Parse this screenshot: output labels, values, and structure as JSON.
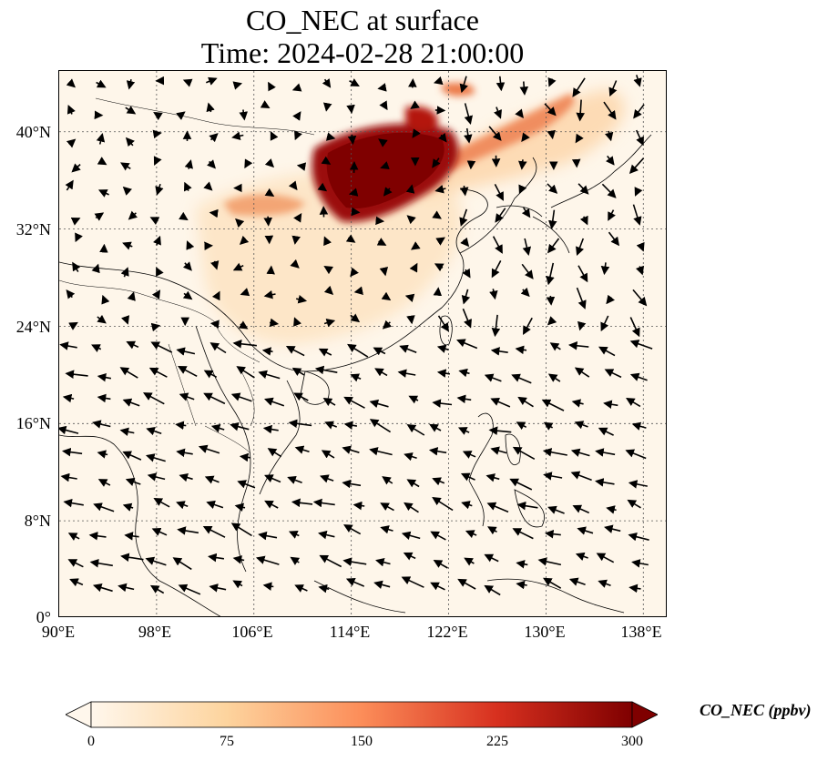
{
  "figure": {
    "title_line1": "CO_NEC at surface",
    "title_line2": "Time: 2024-02-28 21:00:00"
  },
  "map": {
    "lon_range": [
      90,
      140
    ],
    "lat_range": [
      0,
      45
    ],
    "lat_ticks": [
      "40°N",
      "32°N",
      "24°N",
      "16°N",
      "8°N",
      "0°"
    ],
    "lon_ticks": [
      "90°E",
      "98°E",
      "106°E",
      "114°E",
      "122°E",
      "130°E",
      "138°E"
    ],
    "gridlines": true,
    "features": [
      "coastlines",
      "country-borders",
      "wind-vectors"
    ]
  },
  "colorbar": {
    "label": "CO_NEC (ppbv)",
    "ticks": [
      "0",
      "75",
      "150",
      "225",
      "300"
    ],
    "min": 0,
    "max": 300,
    "colormap": "OrRd",
    "colors": [
      "#fff7ec",
      "#fdd49e",
      "#fc8d59",
      "#d7301f",
      "#7f0000"
    ],
    "extend": "both"
  }
}
